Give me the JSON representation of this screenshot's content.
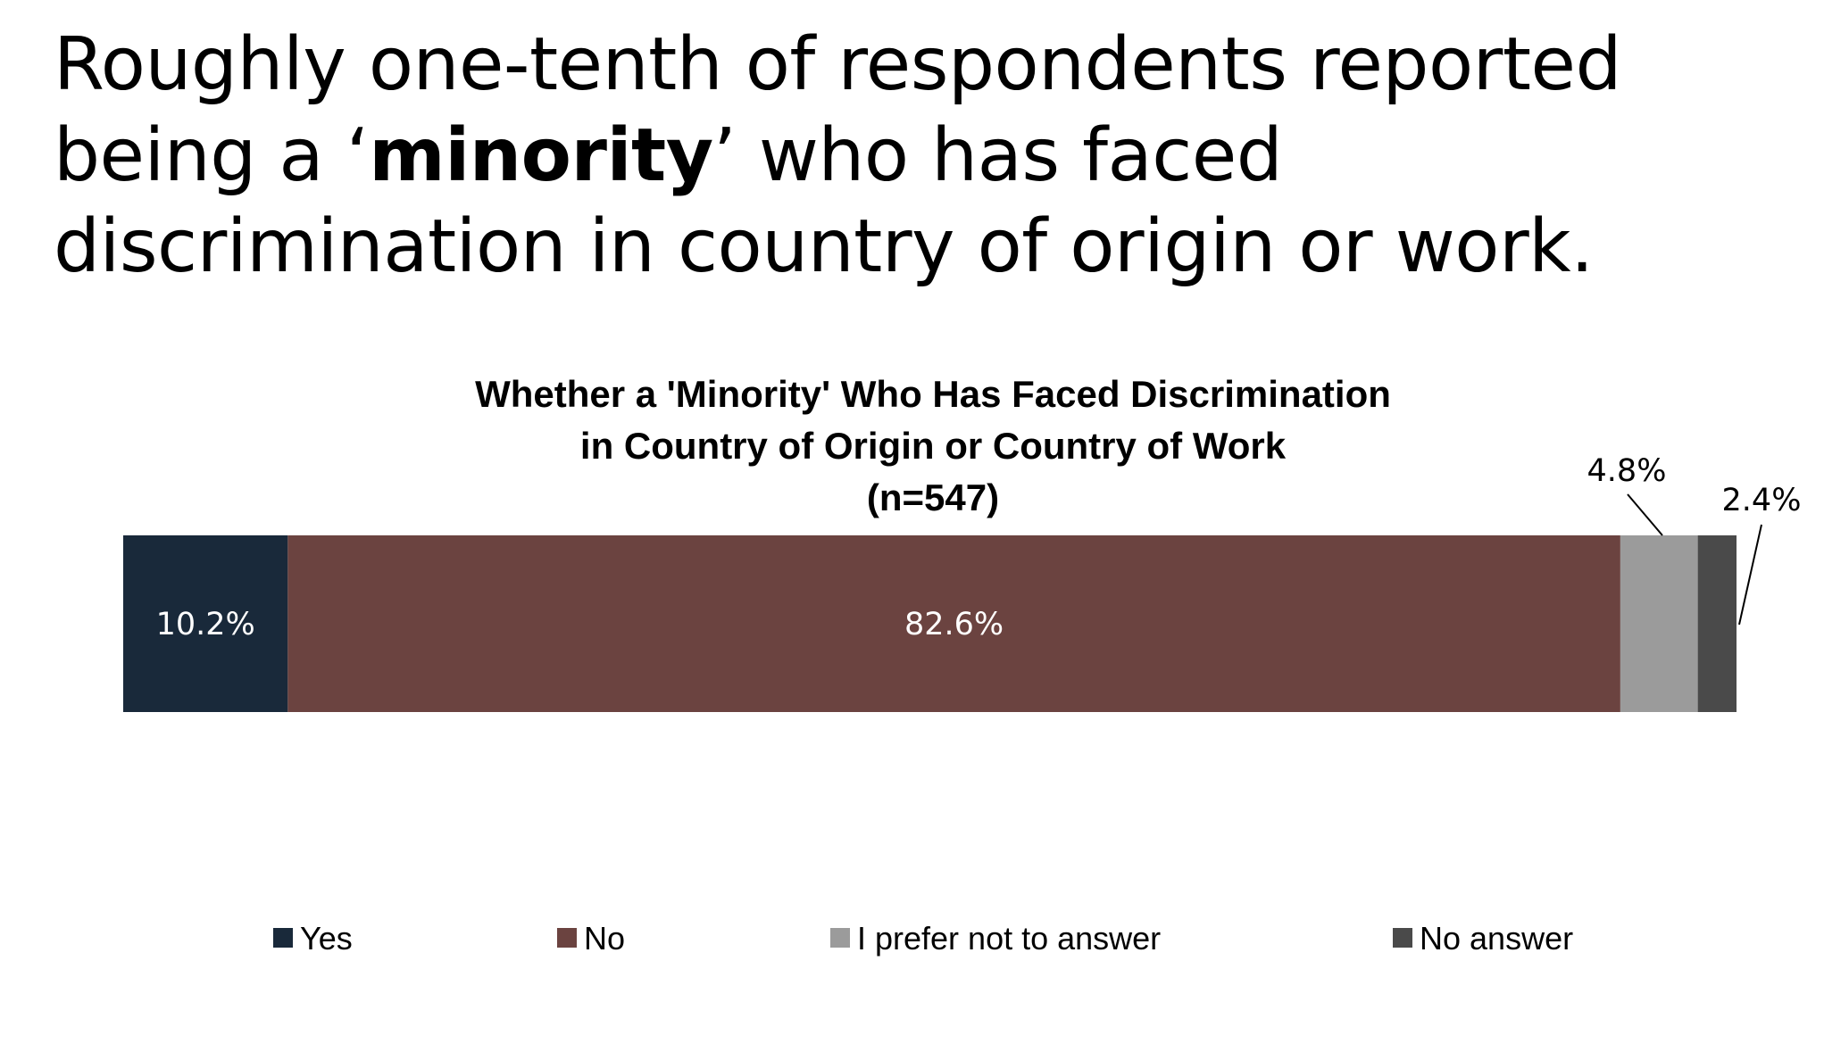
{
  "headline": {
    "before": "Roughly one-tenth of respondents reported being a ‘",
    "emphasis": "minority",
    "after": "’ who has faced discrimination in country of origin or work."
  },
  "chart_data": {
    "type": "bar",
    "orientation": "horizontal-stacked-100",
    "title": [
      "Whether a 'Minority' Who Has Faced Discrimination",
      "in Country of Origin or Country of Work",
      "(n=547)"
    ],
    "categories": [
      "Yes",
      "No",
      "I prefer not to answer",
      "No answer"
    ],
    "values": [
      10.2,
      82.6,
      4.8,
      2.4
    ],
    "data_labels": [
      "10.2%",
      "82.6%",
      "4.8%",
      "2.4%"
    ],
    "colors": [
      "#19293a",
      "#6b4340",
      "#9b9b9b",
      "#4a4a4a"
    ],
    "xlim": [
      0,
      100
    ],
    "grid": false,
    "legend": "bottom"
  }
}
